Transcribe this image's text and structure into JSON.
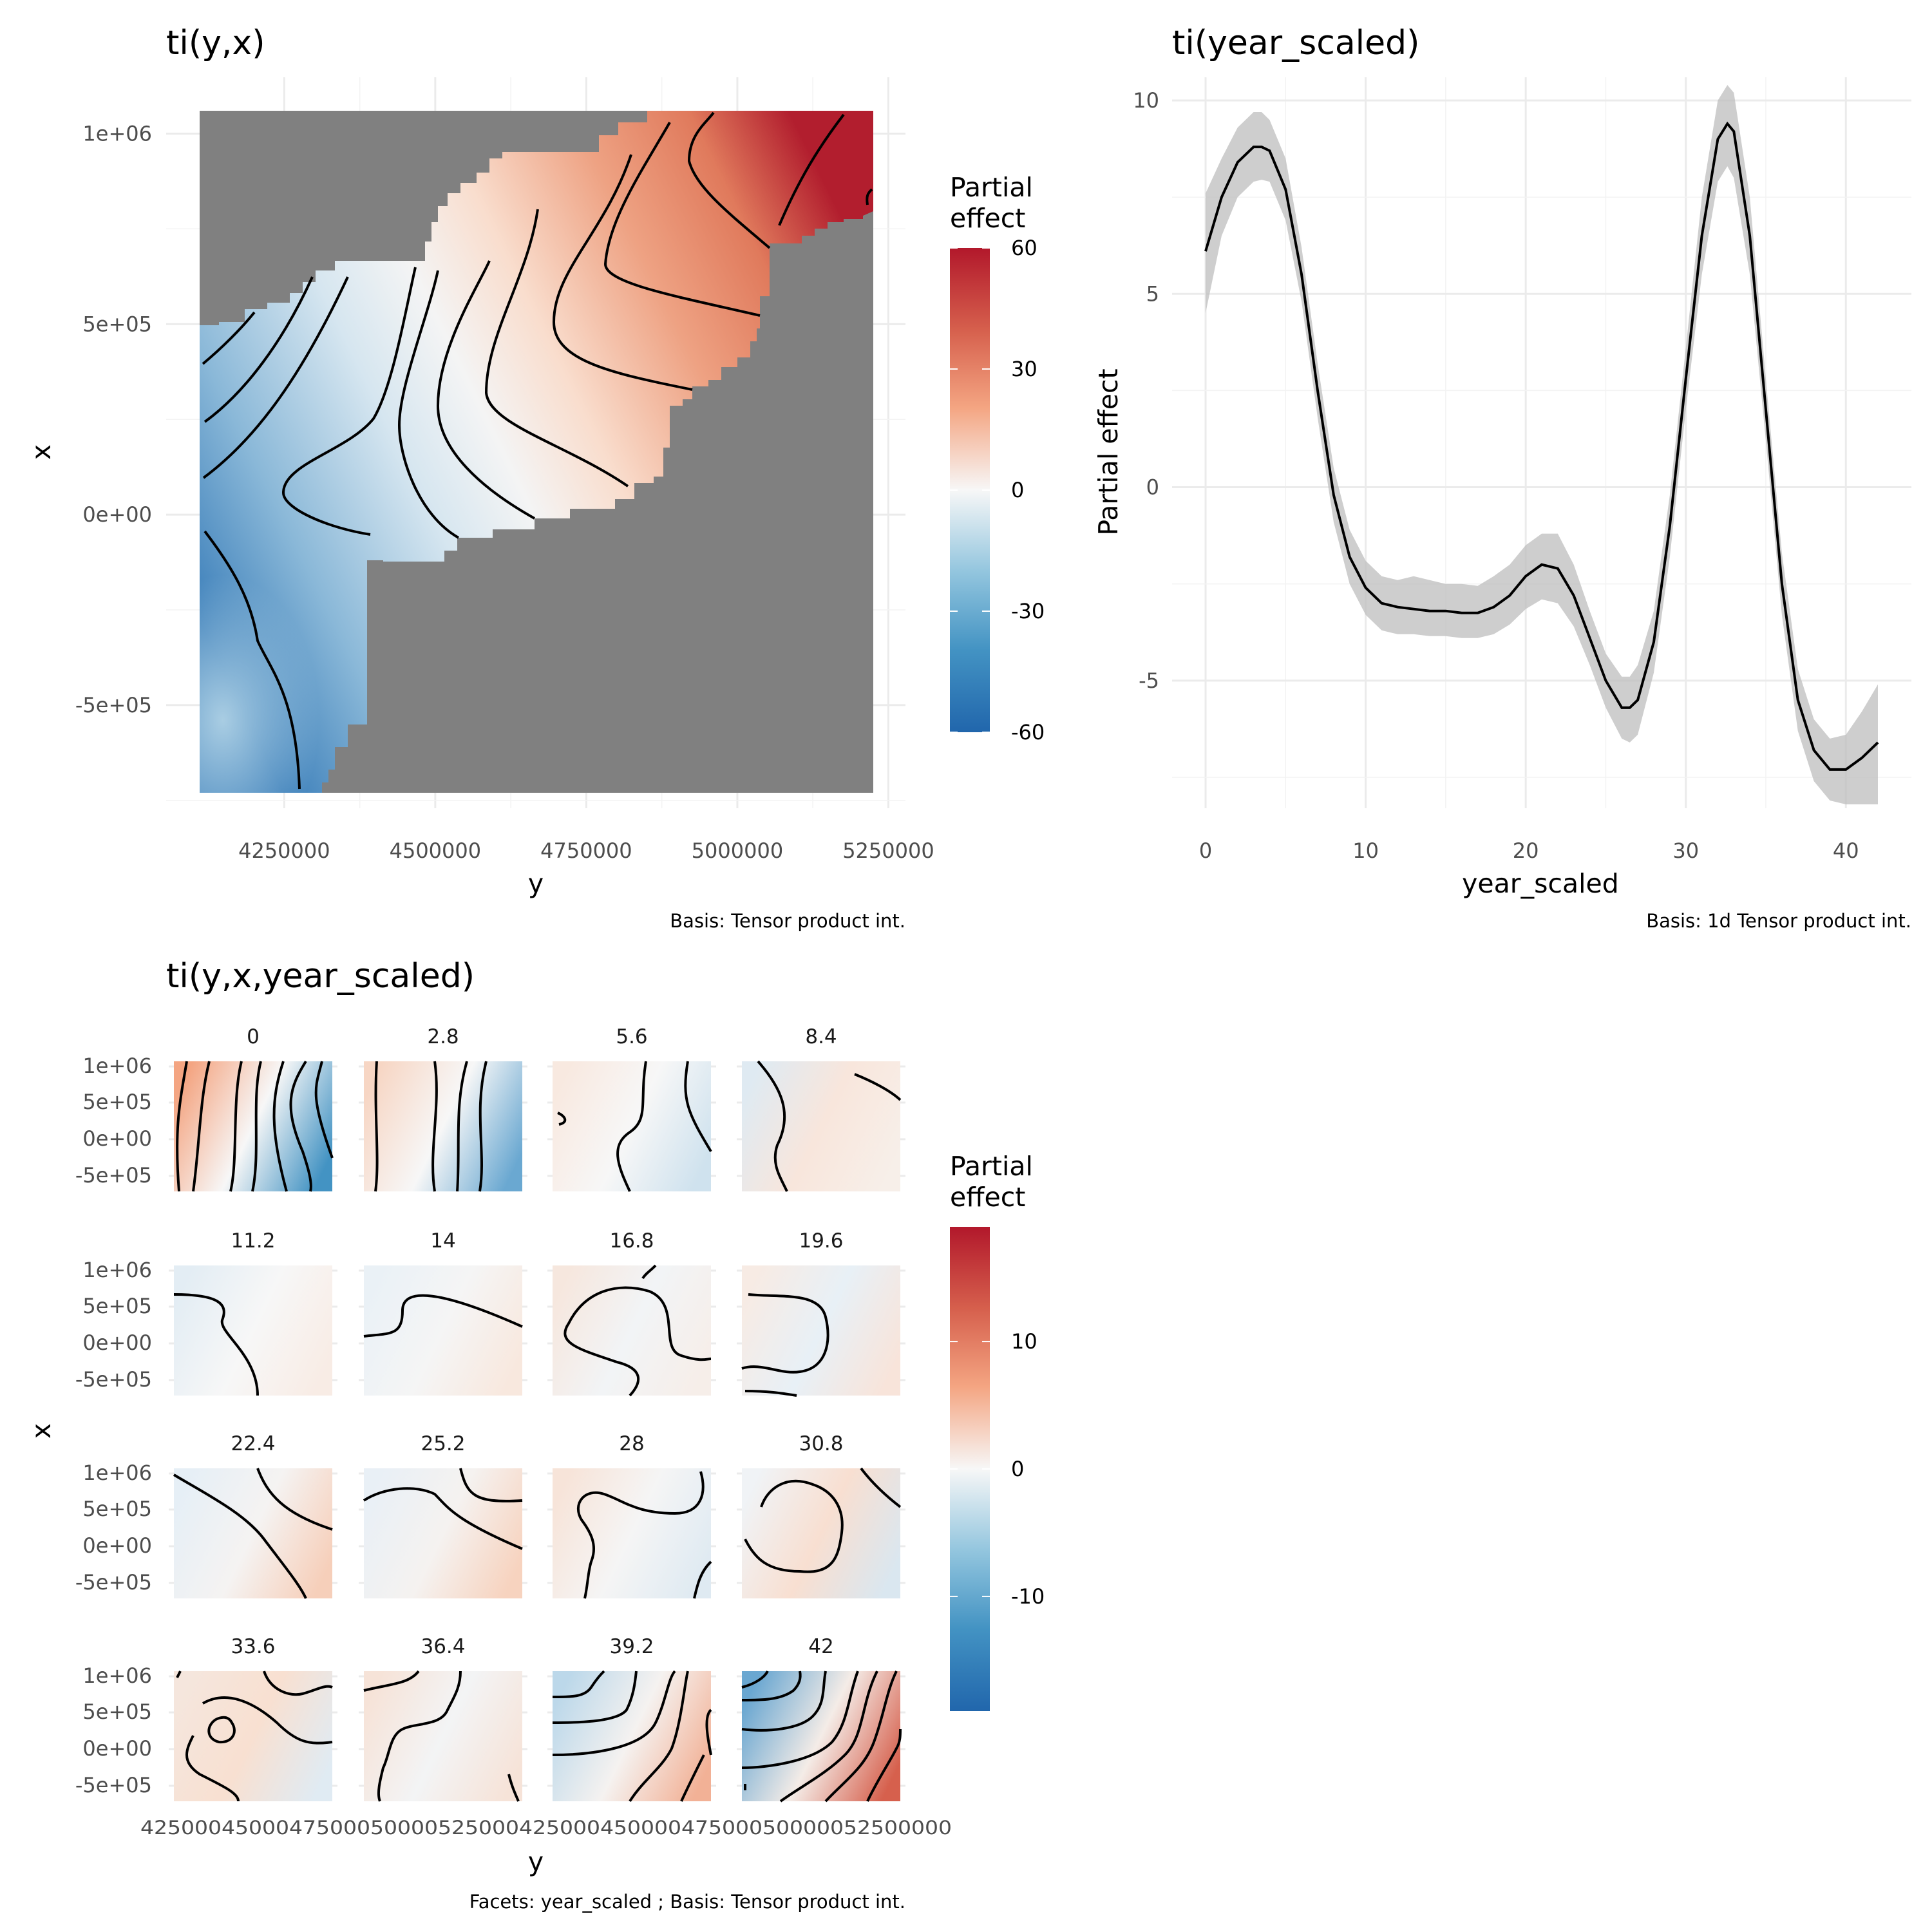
{
  "panels": {
    "spatial": {
      "title": "ti(y,x)",
      "xlabel": "y",
      "ylabel": "x",
      "caption": "Basis: Tensor product int.",
      "legend": {
        "title_line1": "Partial",
        "title_line2": "effect",
        "ticks": [
          "60",
          "30",
          "0",
          "-30",
          "-60"
        ]
      }
    },
    "year": {
      "title": "ti(year_scaled)",
      "xlabel": "year_scaled",
      "ylabel": "Partial effect",
      "caption": "Basis: 1d Tensor product int."
    },
    "interaction": {
      "title": "ti(y,x,year_scaled)",
      "xlabel": "y",
      "ylabel": "x",
      "caption": "Facets: year_scaled ; Basis: Tensor product int.",
      "x_tick_text": "425000450004750005000052500042500045000047500050000052500000",
      "legend": {
        "title_line1": "Partial",
        "title_line2": "effect",
        "ticks": [
          "10",
          "0",
          "-10"
        ]
      }
    }
  },
  "chart_data": [
    {
      "type": "heatmap",
      "title": "ti(y,x)",
      "xlabel": "y",
      "ylabel": "x",
      "x_ticks": [
        "4250000",
        "4500000",
        "4750000",
        "5000000",
        "5250000"
      ],
      "x_tick_values": [
        4250000,
        4500000,
        4750000,
        5000000,
        5250000
      ],
      "y_ticks": [
        "1e+06",
        "5e+05",
        "0e+00",
        "-5e+05"
      ],
      "y_tick_values": [
        1000000,
        500000,
        0,
        -500000
      ],
      "xlim": [
        4110000,
        5225000
      ],
      "ylim": [
        -730000,
        1060000
      ],
      "color_scale": {
        "min": -60,
        "max": 60,
        "low": "#2166ac",
        "mid": "#f7f7f7",
        "high": "#b2182b"
      },
      "na_color": "#808080",
      "legend_title": "Partial effect",
      "grid": true
    },
    {
      "type": "line",
      "title": "ti(year_scaled)",
      "xlabel": "year_scaled",
      "ylabel": "Partial effect",
      "x_ticks": [
        "0",
        "10",
        "20",
        "30",
        "40"
      ],
      "x_tick_values": [
        0,
        10,
        20,
        30,
        40
      ],
      "y_ticks": [
        "10",
        "5",
        "0",
        "-5"
      ],
      "y_tick_values": [
        10,
        5,
        0,
        -5
      ],
      "xlim": [
        0,
        42
      ],
      "ylim": [
        -8.3,
        10.6
      ],
      "grid": true,
      "series": [
        {
          "x": [
            0,
            1,
            2,
            3,
            3.5,
            4,
            5,
            6,
            7,
            8,
            9,
            10,
            11,
            12,
            13,
            14,
            15,
            16,
            17,
            18,
            19,
            20,
            21,
            22,
            23,
            24,
            25,
            26,
            26.5,
            27,
            28,
            29,
            30,
            31,
            32,
            32.6,
            33,
            34,
            35,
            36,
            37,
            38,
            39,
            40,
            41,
            42
          ],
          "y": [
            6.1,
            7.5,
            8.4,
            8.8,
            8.8,
            8.7,
            7.7,
            5.5,
            2.5,
            -0.2,
            -1.8,
            -2.6,
            -3.0,
            -3.1,
            -3.15,
            -3.2,
            -3.2,
            -3.25,
            -3.25,
            -3.1,
            -2.8,
            -2.3,
            -2.0,
            -2.1,
            -2.8,
            -3.9,
            -5.0,
            -5.7,
            -5.7,
            -5.5,
            -4.0,
            -1.0,
            2.8,
            6.5,
            9.0,
            9.4,
            9.2,
            6.5,
            2.0,
            -2.5,
            -5.5,
            -6.8,
            -7.3,
            -7.3,
            -7.0,
            -6.6
          ]
        },
        {
          "name": "lower",
          "x": [
            0,
            1,
            2,
            3,
            3.5,
            4,
            5,
            6,
            7,
            8,
            9,
            10,
            11,
            12,
            13,
            14,
            15,
            16,
            17,
            18,
            19,
            20,
            21,
            22,
            23,
            24,
            25,
            26,
            26.5,
            27,
            28,
            29,
            30,
            31,
            32,
            32.6,
            33,
            34,
            35,
            36,
            37,
            38,
            39,
            40,
            41,
            42
          ],
          "y": [
            4.5,
            6.5,
            7.5,
            7.9,
            7.95,
            7.9,
            6.9,
            4.8,
            1.8,
            -0.9,
            -2.5,
            -3.3,
            -3.7,
            -3.8,
            -3.8,
            -3.85,
            -3.85,
            -3.9,
            -3.9,
            -3.8,
            -3.55,
            -3.15,
            -2.9,
            -3.0,
            -3.6,
            -4.6,
            -5.7,
            -6.5,
            -6.6,
            -6.4,
            -4.8,
            -1.8,
            2.0,
            5.5,
            7.9,
            8.3,
            8.0,
            5.5,
            1.2,
            -3.3,
            -6.3,
            -7.6,
            -8.1,
            -8.2,
            -8.2,
            -8.2
          ]
        },
        {
          "name": "upper",
          "x": [
            0,
            1,
            2,
            3,
            3.5,
            4,
            5,
            6,
            7,
            8,
            9,
            10,
            11,
            12,
            13,
            14,
            15,
            16,
            17,
            18,
            19,
            20,
            21,
            22,
            23,
            24,
            25,
            26,
            26.5,
            27,
            28,
            29,
            30,
            31,
            32,
            32.6,
            33,
            34,
            35,
            36,
            37,
            38,
            39,
            40,
            41,
            42
          ],
          "y": [
            7.6,
            8.5,
            9.3,
            9.7,
            9.7,
            9.5,
            8.5,
            6.2,
            3.2,
            0.5,
            -1.1,
            -1.9,
            -2.3,
            -2.4,
            -2.3,
            -2.4,
            -2.5,
            -2.5,
            -2.55,
            -2.3,
            -2.0,
            -1.5,
            -1.2,
            -1.2,
            -2.0,
            -3.2,
            -4.3,
            -4.9,
            -4.9,
            -4.6,
            -3.2,
            -0.2,
            3.6,
            7.5,
            10.0,
            10.4,
            10.2,
            7.5,
            2.8,
            -1.7,
            -4.7,
            -6.0,
            -6.5,
            -6.4,
            -5.8,
            -5.1
          ]
        }
      ]
    },
    {
      "type": "heatmap",
      "title": "ti(y,x,year_scaled)",
      "xlabel": "y",
      "ylabel": "x",
      "facet_variable": "year_scaled",
      "facets": [
        "0",
        "2.8",
        "5.6",
        "8.4",
        "11.2",
        "14",
        "16.8",
        "19.6",
        "22.4",
        "25.2",
        "28",
        "30.8",
        "33.6",
        "36.4",
        "39.2",
        "42"
      ],
      "y_ticks": [
        "1e+06",
        "5e+05",
        "0e+00",
        "-5e+05"
      ],
      "y_tick_values": [
        1000000,
        500000,
        0,
        -500000
      ],
      "color_scale": {
        "min": -19,
        "max": 19,
        "low": "#2166ac",
        "mid": "#f7f7f7",
        "high": "#b2182b"
      },
      "legend_title": "Partial effect",
      "grid": true
    }
  ]
}
